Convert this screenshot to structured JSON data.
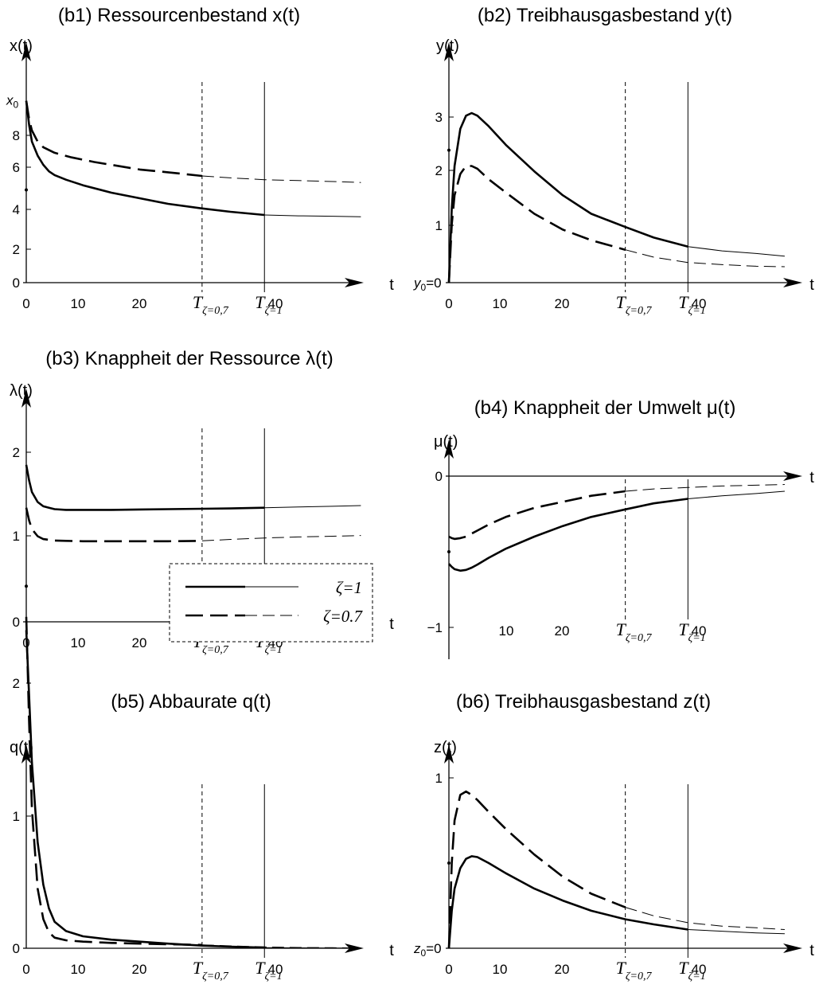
{
  "chart_data": [
    {
      "type": "line",
      "id": "b1",
      "title": "(b1) Ressourcenbestand x(t)",
      "ylabel": "x(t)",
      "xlabel": "t",
      "xlim": [
        0,
        60
      ],
      "ylim": [
        0,
        10
      ],
      "x_ticks": [
        "0",
        "10",
        "20",
        "40"
      ],
      "y_ticks": [
        "0",
        "2",
        "4",
        "6",
        "8"
      ],
      "y_extra_label": {
        "text": "x",
        "sub": "0",
        "value": 9.8
      },
      "start_dot": 5,
      "horizon_labels": [
        {
          "symbol": "T",
          "sub": "ζ=0,7",
          "t": 31,
          "style": "dashed"
        },
        {
          "symbol": "T",
          "sub": "ζ=1",
          "t": 42,
          "style": "solid"
        }
      ],
      "series": [
        {
          "name": "ζ=1",
          "style": "solid",
          "horizon": 42,
          "x": [
            0,
            0.5,
            1,
            2,
            3,
            4,
            5,
            7,
            10,
            15,
            20,
            25,
            31,
            36,
            42,
            48,
            54,
            59
          ],
          "y": [
            9.8,
            8.5,
            7.6,
            6.85,
            6.35,
            6.0,
            5.8,
            5.55,
            5.25,
            4.85,
            4.55,
            4.25,
            4.0,
            3.82,
            3.65,
            3.6,
            3.58,
            3.55
          ]
        },
        {
          "name": "ζ=0.7",
          "style": "dashed",
          "horizon": 31,
          "x": [
            0,
            0.5,
            1,
            2,
            3,
            5,
            8,
            12,
            16,
            20,
            25,
            31,
            36,
            42,
            48,
            54,
            59
          ],
          "y": [
            9.8,
            8.8,
            8.2,
            7.6,
            7.3,
            7.0,
            6.75,
            6.5,
            6.3,
            6.1,
            5.95,
            5.75,
            5.65,
            5.55,
            5.5,
            5.45,
            5.4
          ]
        }
      ]
    },
    {
      "type": "line",
      "id": "b2",
      "title": "(b2) Treibhausgasbestand y(t)",
      "ylabel": "y(t)",
      "xlabel": "t",
      "xlim": [
        0,
        60
      ],
      "ylim": [
        0,
        3.5
      ],
      "x_ticks": [
        "0",
        "10",
        "20",
        "40"
      ],
      "y_ticks": [
        "0",
        "1",
        "2",
        "3"
      ],
      "y_extra_label": {
        "text": "y",
        "sub": "0",
        "suffix": "=",
        "value": 0
      },
      "start_dot": 2.5,
      "horizon_labels": [
        {
          "symbol": "T",
          "sub": "ζ=0,7",
          "t": 31,
          "style": "dashed"
        },
        {
          "symbol": "T",
          "sub": "ζ=1",
          "t": 42,
          "style": "solid"
        }
      ],
      "series": [
        {
          "name": "ζ=1",
          "style": "solid",
          "horizon": 42,
          "x": [
            0,
            0.5,
            1,
            2,
            3,
            4,
            5,
            7,
            10,
            15,
            20,
            25,
            31,
            36,
            42,
            48,
            54,
            59
          ],
          "y": [
            0,
            1.4,
            2.2,
            2.9,
            3.15,
            3.2,
            3.15,
            2.95,
            2.6,
            2.1,
            1.65,
            1.3,
            1.05,
            0.85,
            0.68,
            0.6,
            0.55,
            0.5
          ]
        },
        {
          "name": "ζ=0.7",
          "style": "dashed",
          "horizon": 31,
          "x": [
            0,
            0.5,
            1,
            2,
            3,
            4,
            5,
            7,
            10,
            15,
            20,
            25,
            31,
            36,
            42,
            48,
            54,
            59
          ],
          "y": [
            0,
            1.1,
            1.65,
            2.05,
            2.2,
            2.2,
            2.15,
            1.95,
            1.7,
            1.3,
            1.0,
            0.8,
            0.62,
            0.48,
            0.38,
            0.34,
            0.31,
            0.3
          ]
        }
      ]
    },
    {
      "type": "line",
      "id": "b3",
      "title": "(b3) Knappheit der Ressource λ(t)",
      "ylabel": "λ(t)",
      "xlabel": "t",
      "xlim": [
        0,
        60
      ],
      "ylim": [
        0,
        2.4
      ],
      "x_ticks": [
        "0",
        "10",
        "20",
        "40"
      ],
      "y_ticks": [
        "0",
        "1",
        "2"
      ],
      "start_dot": 0.5,
      "horizon_labels": [
        {
          "symbol": "T",
          "sub": "ζ=0,7",
          "t": 31,
          "style": "dashed"
        },
        {
          "symbol": "T",
          "sub": "ζ=1",
          "t": 42,
          "style": "solid"
        }
      ],
      "series": [
        {
          "name": "ζ=1",
          "style": "solid",
          "horizon": 42,
          "x": [
            0,
            0.5,
            1,
            2,
            3,
            4,
            5,
            7,
            10,
            15,
            20,
            25,
            31,
            36,
            42,
            48,
            54,
            59
          ],
          "y": [
            2.2,
            1.98,
            1.82,
            1.68,
            1.62,
            1.6,
            1.58,
            1.57,
            1.57,
            1.57,
            1.575,
            1.58,
            1.585,
            1.59,
            1.6,
            1.61,
            1.62,
            1.63
          ]
        },
        {
          "name": "ζ=0.7",
          "style": "dashed",
          "horizon": 31,
          "x": [
            0,
            0.5,
            1,
            2,
            3,
            4,
            5,
            7,
            10,
            15,
            20,
            25,
            31,
            36,
            42,
            48,
            54,
            59
          ],
          "y": [
            1.6,
            1.42,
            1.3,
            1.2,
            1.16,
            1.15,
            1.14,
            1.135,
            1.13,
            1.13,
            1.13,
            1.13,
            1.135,
            1.155,
            1.175,
            1.19,
            1.2,
            1.21
          ]
        }
      ]
    },
    {
      "type": "line",
      "id": "b4",
      "title": "(b4) Knappheit der Umwelt μ(t)",
      "ylabel": "μ(t)",
      "xlabel": "t",
      "xlim": [
        0,
        60
      ],
      "ylim": [
        -1.2,
        0.5
      ],
      "x_ticks": [
        "10",
        "20",
        "40"
      ],
      "y_ticks": [
        "0",
        "−1"
      ],
      "start_dot": -0.5,
      "horizon_labels": [
        {
          "symbol": "T",
          "sub": "ζ=0,7",
          "t": 31,
          "style": "dashed"
        },
        {
          "symbol": "T",
          "sub": "ζ=1",
          "t": 42,
          "style": "solid"
        }
      ],
      "series": [
        {
          "name": "ζ=1",
          "style": "solid",
          "horizon": 42,
          "x": [
            0,
            0.5,
            1,
            2,
            3,
            4,
            5,
            7,
            10,
            15,
            20,
            25,
            31,
            36,
            42,
            48,
            54,
            59
          ],
          "y": [
            -0.58,
            -0.6,
            -0.615,
            -0.625,
            -0.62,
            -0.605,
            -0.585,
            -0.54,
            -0.48,
            -0.4,
            -0.33,
            -0.27,
            -0.22,
            -0.18,
            -0.15,
            -0.13,
            -0.115,
            -0.1
          ]
        },
        {
          "name": "ζ=0.7",
          "style": "dashed",
          "horizon": 31,
          "x": [
            0,
            0.5,
            1,
            2,
            3,
            4,
            5,
            7,
            10,
            15,
            20,
            25,
            31,
            36,
            42,
            48,
            54,
            59
          ],
          "y": [
            -0.4,
            -0.41,
            -0.415,
            -0.41,
            -0.4,
            -0.38,
            -0.36,
            -0.32,
            -0.27,
            -0.21,
            -0.17,
            -0.13,
            -0.1,
            -0.085,
            -0.075,
            -0.065,
            -0.06,
            -0.055
          ]
        }
      ]
    },
    {
      "type": "line",
      "id": "b5",
      "title": "(b5) Abbaurate q(t)",
      "ylabel": "q(t)",
      "xlabel": "t",
      "xlim": [
        0,
        60
      ],
      "ylim": [
        0,
        2.6
      ],
      "x_ticks": [
        "0",
        "10",
        "20",
        "40"
      ],
      "y_ticks": [
        "0",
        "1",
        "2"
      ],
      "start_dot": null,
      "horizon_labels": [
        {
          "symbol": "T",
          "sub": "ζ=0,7",
          "t": 31,
          "style": "dashed"
        },
        {
          "symbol": "T",
          "sub": "ζ=1",
          "t": 42,
          "style": "solid"
        }
      ],
      "legend": [
        {
          "text": "ζ=1",
          "style": "solid"
        },
        {
          "text": "ζ=0.7",
          "style": "dashed"
        }
      ],
      "series": [
        {
          "name": "ζ=1",
          "style": "solid",
          "horizon": 42,
          "x": [
            0,
            0.5,
            1,
            2,
            3,
            4,
            5,
            7,
            10,
            15,
            20,
            25,
            31,
            36,
            42,
            48,
            54,
            59
          ],
          "y": [
            2.4,
            1.9,
            1.4,
            0.8,
            0.48,
            0.3,
            0.2,
            0.13,
            0.09,
            0.065,
            0.05,
            0.035,
            0.02,
            0.012,
            0.005,
            0.003,
            0.002,
            0.001
          ]
        },
        {
          "name": "ζ=0.7",
          "style": "dashed",
          "horizon": 31,
          "x": [
            0,
            0.5,
            1,
            2,
            3,
            4,
            5,
            7,
            10,
            15,
            20,
            25,
            31,
            36,
            42,
            48,
            54,
            59
          ],
          "y": [
            2.5,
            1.7,
            1.05,
            0.45,
            0.22,
            0.12,
            0.08,
            0.06,
            0.05,
            0.04,
            0.035,
            0.03,
            0.025,
            0.018,
            0.01,
            0.006,
            0.004,
            0.002
          ]
        }
      ]
    },
    {
      "type": "line",
      "id": "b6",
      "title": "(b6) Treibhausgasbestand z(t)",
      "ylabel": "z(t)",
      "xlabel": "t",
      "xlim": [
        0,
        60
      ],
      "ylim": [
        0,
        1.1
      ],
      "x_ticks": [
        "0",
        "10",
        "20",
        "40"
      ],
      "y_ticks": [
        "0",
        "1"
      ],
      "y_extra_label": {
        "text": "z",
        "sub": "0",
        "suffix": "=",
        "value": 0
      },
      "start_dot": 0.5,
      "horizon_labels": [
        {
          "symbol": "T",
          "sub": "ζ=0,7",
          "t": 31,
          "style": "dashed"
        },
        {
          "symbol": "T",
          "sub": "ζ=1",
          "t": 42,
          "style": "solid"
        }
      ],
      "series": [
        {
          "name": "ζ=1",
          "style": "solid",
          "horizon": 42,
          "x": [
            0,
            0.5,
            1,
            2,
            3,
            4,
            5,
            7,
            10,
            15,
            20,
            25,
            31,
            36,
            42,
            48,
            54,
            59
          ],
          "y": [
            0,
            0.22,
            0.35,
            0.47,
            0.525,
            0.54,
            0.535,
            0.5,
            0.44,
            0.35,
            0.28,
            0.22,
            0.17,
            0.14,
            0.11,
            0.1,
            0.09,
            0.085
          ]
        },
        {
          "name": "ζ=0.7",
          "style": "dashed",
          "horizon": 31,
          "x": [
            0,
            0.5,
            1,
            2,
            3,
            4,
            5,
            7,
            10,
            15,
            20,
            25,
            31,
            36,
            42,
            48,
            54,
            59
          ],
          "y": [
            0,
            0.5,
            0.75,
            0.9,
            0.92,
            0.9,
            0.87,
            0.8,
            0.7,
            0.55,
            0.42,
            0.32,
            0.24,
            0.19,
            0.15,
            0.13,
            0.12,
            0.11
          ]
        }
      ]
    }
  ]
}
